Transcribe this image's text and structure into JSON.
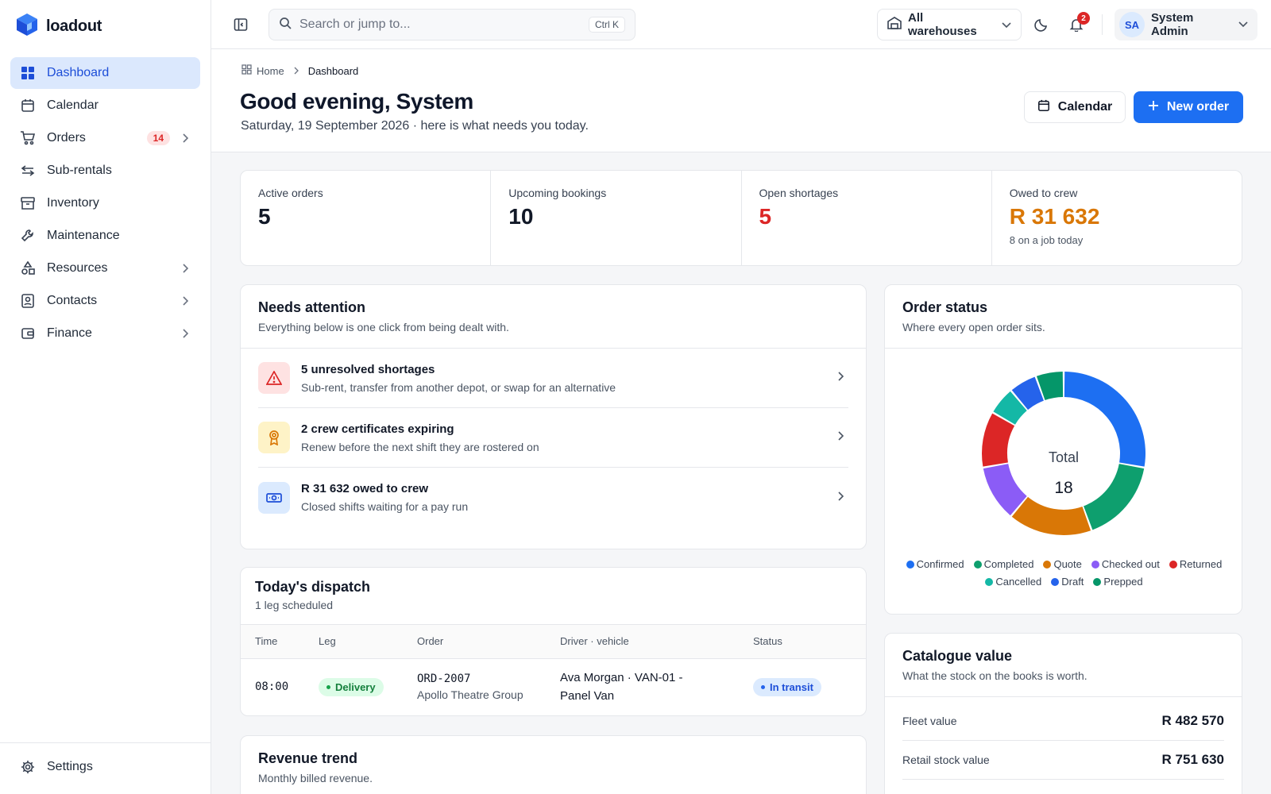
{
  "app": {
    "name": "loadout"
  },
  "sidebar": {
    "items": [
      {
        "label": "Dashboard",
        "icon": "dashboard-icon",
        "active": true
      },
      {
        "label": "Calendar",
        "icon": "calendar-icon"
      },
      {
        "label": "Orders",
        "icon": "cart-icon",
        "badge": "14",
        "expandable": true
      },
      {
        "label": "Sub-rentals",
        "icon": "swap-icon"
      },
      {
        "label": "Inventory",
        "icon": "archive-icon"
      },
      {
        "label": "Maintenance",
        "icon": "wrench-icon"
      },
      {
        "label": "Resources",
        "icon": "shapes-icon",
        "expandable": true
      },
      {
        "label": "Contacts",
        "icon": "contact-card-icon",
        "expandable": true
      },
      {
        "label": "Finance",
        "icon": "wallet-icon",
        "expandable": true
      }
    ],
    "settings_label": "Settings"
  },
  "topbar": {
    "search_placeholder": "Search or jump to...",
    "search_shortcut": "Ctrl K",
    "warehouse_select": "All warehouses",
    "notification_count": "2",
    "user_initials": "SA",
    "user_name": "System Admin"
  },
  "page": {
    "breadcrumb": {
      "home": "Home",
      "current": "Dashboard"
    },
    "title": "Good evening, System",
    "subtitle": "Saturday, 19 September 2026 · here is what needs you today.",
    "calendar_button": "Calendar",
    "new_order_button": "New order"
  },
  "stats": [
    {
      "label": "Active orders",
      "value": "5"
    },
    {
      "label": "Upcoming bookings",
      "value": "10"
    },
    {
      "label": "Open shortages",
      "value": "5"
    },
    {
      "label": "Owed to crew",
      "value": "R 31 632",
      "note": "8 on a job today"
    }
  ],
  "attention": {
    "title": "Needs attention",
    "subtitle": "Everything below is one click from being dealt with.",
    "items": [
      {
        "title": "5 unresolved shortages",
        "desc": "Sub-rent, transfer from another depot, or swap for an alternative",
        "icon": "warning-icon",
        "color": "#dc2626",
        "bg": "#fee2e2"
      },
      {
        "title": "2 crew certificates expiring",
        "desc": "Renew before the next shift they are rostered on",
        "icon": "award-icon",
        "color": "#d97706",
        "bg": "#fef3c7"
      },
      {
        "title": "R 31 632 owed to crew",
        "desc": "Closed shifts waiting for a pay run",
        "icon": "banknote-icon",
        "color": "#1d4ed8",
        "bg": "#dbeafe"
      }
    ]
  },
  "dispatch": {
    "title": "Today's dispatch",
    "subtitle": "1 leg scheduled",
    "columns": [
      "Time",
      "Leg",
      "Order",
      "Driver · vehicle",
      "Status"
    ],
    "rows": [
      {
        "time": "08:00",
        "leg": "Delivery",
        "order": "ORD-2007",
        "client": "Apollo Theatre Group",
        "driver": "Ava Morgan · VAN-01 -",
        "vehicle": "Panel Van",
        "status": "In transit"
      }
    ]
  },
  "revenue": {
    "title": "Revenue trend",
    "subtitle": "Monthly billed revenue."
  },
  "order_status": {
    "title": "Order status",
    "subtitle": "Where every open order sits.",
    "center_label": "Total",
    "total": "18",
    "legend": [
      {
        "name": "Confirmed",
        "color": "#1d6ff2"
      },
      {
        "name": "Completed",
        "color": "#0e9f6e"
      },
      {
        "name": "Quote",
        "color": "#d97706"
      },
      {
        "name": "Checked out",
        "color": "#8b5cf6"
      },
      {
        "name": "Returned",
        "color": "#dc2626"
      },
      {
        "name": "Cancelled",
        "color": "#14b8a6"
      },
      {
        "name": "Draft",
        "color": "#2563eb"
      },
      {
        "name": "Prepped",
        "color": "#059669"
      }
    ]
  },
  "chart_data": {
    "type": "pie",
    "categories": [
      "Confirmed",
      "Completed",
      "Quote",
      "Checked out",
      "Returned",
      "Cancelled",
      "Draft",
      "Prepped"
    ],
    "values": [
      5,
      3,
      3,
      2,
      2,
      1,
      1,
      1
    ],
    "colors": [
      "#1d6ff2",
      "#0e9f6e",
      "#d97706",
      "#8b5cf6",
      "#dc2626",
      "#14b8a6",
      "#2563eb",
      "#059669"
    ]
  },
  "catalogue": {
    "title": "Catalogue value",
    "subtitle": "What the stock on the books is worth.",
    "rows": [
      {
        "label": "Fleet value",
        "value": "R 482 570"
      },
      {
        "label": "Retail stock value",
        "value": "R 751 630"
      }
    ]
  }
}
